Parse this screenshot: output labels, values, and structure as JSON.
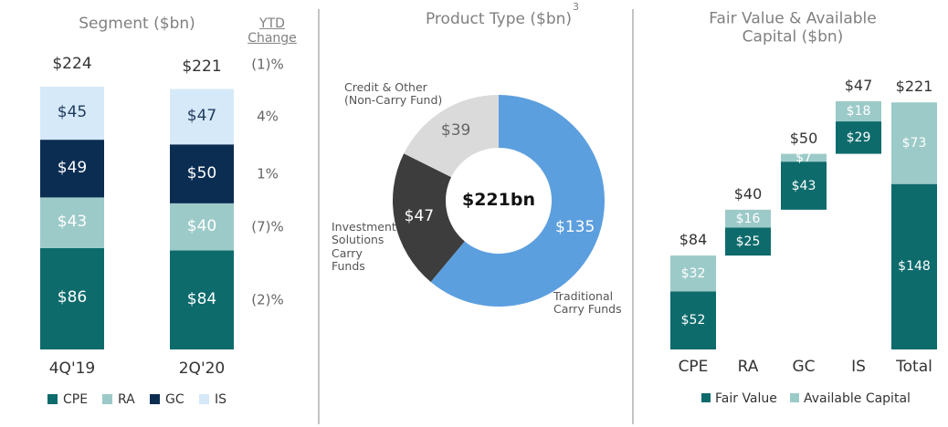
{
  "chart_data": [
    {
      "type": "stacked_bar",
      "title": "Segment ($bn)",
      "categories": [
        "4Q'19",
        "2Q'20"
      ],
      "series": [
        {
          "name": "CPE",
          "color": "#0e6b6c",
          "label_color": "#ffffff",
          "values": [
            86,
            84
          ],
          "value_labels": [
            "$86",
            "$84"
          ]
        },
        {
          "name": "RA",
          "color": "#9ccac8",
          "label_color": "#ffffff",
          "values": [
            43,
            40
          ],
          "value_labels": [
            "$43",
            "$40"
          ]
        },
        {
          "name": "GC",
          "color": "#0c2d52",
          "label_color": "#ffffff",
          "values": [
            49,
            50
          ],
          "value_labels": [
            "$49",
            "$50"
          ]
        },
        {
          "name": "IS",
          "color": "#d6e9f8",
          "label_color": "#1f3a5c",
          "values": [
            45,
            47
          ],
          "value_labels": [
            "$45",
            "$47"
          ]
        }
      ],
      "totals": [
        224,
        221
      ],
      "total_labels": [
        "$224",
        "$221"
      ],
      "ytd_change": {
        "title": "YTD Change",
        "values": [
          -1,
          4,
          1,
          -7,
          -2
        ],
        "value_labels": [
          "(1)%",
          "4%",
          "1%",
          "(7)%",
          "(2)%"
        ]
      },
      "legend": "bottom"
    },
    {
      "type": "donut",
      "title": "Product Type ($bn)",
      "title_note": "3",
      "center_label": "$221bn",
      "categories": [
        "Traditional Carry Funds",
        "Investment Solutions Carry Funds",
        "Credit & Other (Non-Carry Fund)"
      ],
      "values": [
        135,
        47,
        39
      ],
      "value_labels": [
        "$135",
        "$47",
        "$39"
      ],
      "colors": [
        "#5c9fdf",
        "#3d3d3d",
        "#dadada"
      ],
      "label_colors": [
        "#ffffff",
        "#ffffff",
        "#666666"
      ]
    },
    {
      "type": "waterfall",
      "title": "Fair Value & Available Capital ($bn)",
      "categories": [
        "CPE",
        "RA",
        "GC",
        "IS",
        "Total"
      ],
      "series": [
        {
          "name": "Fair Value",
          "color": "#0e6b6c",
          "values": [
            52,
            25,
            43,
            29,
            148
          ],
          "value_labels": [
            "$52",
            "$25",
            "$43",
            "$29",
            "$148"
          ]
        },
        {
          "name": "Available Capital",
          "color": "#9ccac8",
          "values": [
            32,
            16,
            7,
            18,
            73
          ],
          "value_labels": [
            "$32",
            "$16",
            "$7",
            "$18",
            "$73"
          ]
        }
      ],
      "totals": [
        84,
        40,
        50,
        47,
        221
      ],
      "total_labels": [
        "$84",
        "$40",
        "$50",
        "$47",
        "$221"
      ],
      "legend": "bottom"
    }
  ]
}
